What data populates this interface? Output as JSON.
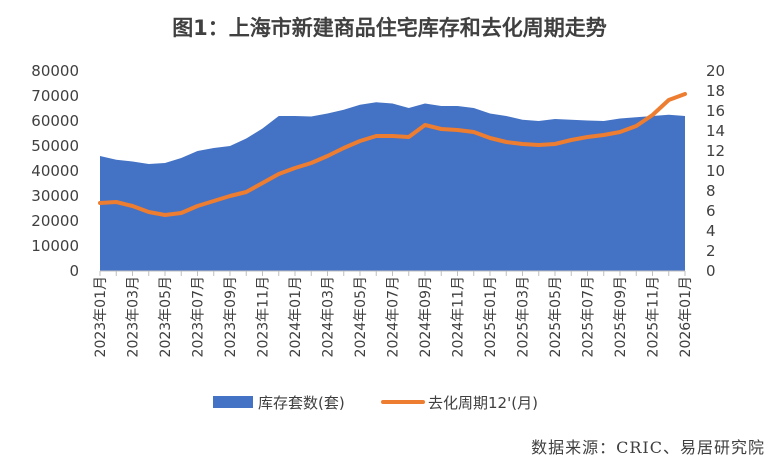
{
  "chart_data": {
    "type": "area",
    "title": "图1：上海市新建商品住宅库存和去化周期走势",
    "source": "数据来源：CRIC、易居研究院",
    "left_axis": {
      "min": 0,
      "max": 80000,
      "ticks": [
        "80000",
        "70000",
        "60000",
        "50000",
        "40000",
        "30000",
        "20000",
        "10000",
        "0"
      ]
    },
    "right_axis": {
      "min": 0,
      "max": 20,
      "ticks": [
        "20",
        "18",
        "16",
        "14",
        "12",
        "10",
        "8",
        "6",
        "4",
        "2",
        "0"
      ]
    },
    "x_tick_labels": [
      "2023年01月",
      "2023年03月",
      "2023年05月",
      "2023年07月",
      "2023年09月",
      "2023年11月",
      "2024年01月",
      "2024年03月",
      "2024年05月",
      "2024年07月",
      "2024年09月",
      "2024年11月",
      "2025年01月",
      "2025年03月",
      "2025年05月",
      "2025年07月",
      "2025年09月",
      "2025年11月",
      "2026年01月"
    ],
    "categories": [
      "2023-01",
      "2023-02",
      "2023-03",
      "2023-04",
      "2023-05",
      "2023-06",
      "2023-07",
      "2023-08",
      "2023-09",
      "2023-10",
      "2023-11",
      "2023-12",
      "2024-01",
      "2024-02",
      "2024-03",
      "2024-04",
      "2024-05",
      "2024-06",
      "2024-07",
      "2024-08",
      "2024-09",
      "2024-10",
      "2024-11",
      "2024-12",
      "2025-01",
      "2025-02",
      "2025-03",
      "2025-04",
      "2025-05",
      "2025-06",
      "2025-07",
      "2025-08",
      "2025-09",
      "2025-10",
      "2025-11",
      "2025-12",
      "2026-01"
    ],
    "series": [
      {
        "name": "库存套数(套)",
        "axis": "left",
        "type": "area",
        "color": "#4472C4",
        "values": [
          46000,
          44500,
          43800,
          42800,
          43200,
          45200,
          48000,
          49200,
          50000,
          53000,
          57000,
          62000,
          62000,
          61800,
          63000,
          64500,
          66500,
          67500,
          67000,
          65200,
          67000,
          66000,
          66000,
          65200,
          63000,
          62000,
          60500,
          60000,
          60800,
          60500,
          60200,
          60000,
          61000,
          61500,
          62000,
          62500,
          62000
        ]
      },
      {
        "name": "去化周期12'(月)",
        "axis": "right",
        "type": "line",
        "color": "#ED7D31",
        "values": [
          6.8,
          6.9,
          6.5,
          5.9,
          5.6,
          5.8,
          6.5,
          7.0,
          7.5,
          7.9,
          8.8,
          9.7,
          10.3,
          10.8,
          11.5,
          12.3,
          13.0,
          13.5,
          13.5,
          13.4,
          14.6,
          14.2,
          14.1,
          13.9,
          13.3,
          12.9,
          12.7,
          12.6,
          12.7,
          13.1,
          13.4,
          13.6,
          13.9,
          14.5,
          15.6,
          17.1,
          17.7
        ]
      }
    ],
    "legend_position": "bottom",
    "grid": false
  }
}
